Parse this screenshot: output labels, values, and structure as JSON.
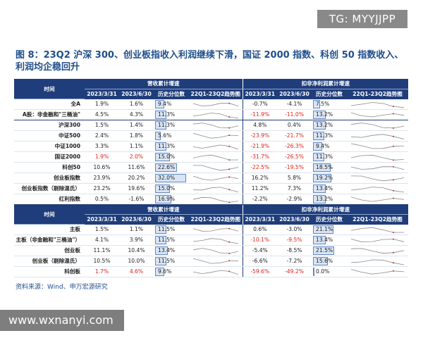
{
  "watermark_top": "TG: MYYJJPP",
  "title": "图 8：23Q2 沪深 300、创业板指收入利润继续下滑，国证 2000 指数、科创 50 指数收入、利润均企稳回升",
  "table1": {
    "group_headers": {
      "revenue": "营收累计增速",
      "profit": "扣非净利润累计增速"
    },
    "col_headers": {
      "name": "时间",
      "d1": "2023/3/31",
      "d2": "2023/6/30",
      "pct": "历史分位数",
      "trend": "22Q1-23Q2趋势图"
    },
    "rows": [
      {
        "name": "全A",
        "r1": "1.9%",
        "r2": "1.6%",
        "rp": "9.4%",
        "rpv": 9.4,
        "p1": "-0.7%",
        "p2": "-4.1%",
        "pp": "7.5%",
        "ppv": 7.5
      },
      {
        "name": "A股：非金融和\"三桶油\"",
        "r1": "4.5%",
        "r2": "4.3%",
        "rp": "11.3%",
        "rpv": 11.3,
        "p1": "-11.9%",
        "p2": "-11.0%",
        "pp": "13.2%",
        "ppv": 13.2
      },
      {
        "name": "沪深300",
        "r1": "1.5%",
        "r2": "1.4%",
        "rp": "11.3%",
        "rpv": 11.3,
        "p1": "4.8%",
        "p2": "0.4%",
        "pp": "13.2%",
        "ppv": 13.2
      },
      {
        "name": "中证500",
        "r1": "2.4%",
        "r2": "1.8%",
        "rp": "5.6%",
        "rpv": 5.6,
        "p1": "-23.9%",
        "p2": "-21.7%",
        "pp": "11.3%",
        "ppv": 11.3
      },
      {
        "name": "中证1000",
        "r1": "3.3%",
        "r2": "1.1%",
        "rp": "11.3%",
        "rpv": 11.3,
        "p1": "-21.9%",
        "p2": "-26.3%",
        "pp": "9.4%",
        "ppv": 9.4
      },
      {
        "name": "国证2000",
        "r1": "1.9%",
        "r2": "2.0%",
        "rp": "15.0%",
        "rpv": 15.0,
        "p1": "-31.7%",
        "p2": "-26.5%",
        "pp": "11.3%",
        "ppv": 11.3
      },
      {
        "name": "科创50",
        "r1": "10.6%",
        "r2": "11.6%",
        "rp": "22.6%",
        "rpv": 22.6,
        "p1": "-22.5%",
        "p2": "-19.5%",
        "pp": "18.5%",
        "ppv": 18.5
      },
      {
        "name": "创业板指数",
        "r1": "23.9%",
        "r2": "20.2%",
        "rp": "32.0%",
        "rpv": 32.0,
        "p1": "16.2%",
        "p2": "5.8%",
        "pp": "19.2%",
        "ppv": 19.2
      },
      {
        "name": "创业板指数（剔除温氏）",
        "r1": "23.2%",
        "r2": "19.6%",
        "rp": "15.0%",
        "rpv": 15.0,
        "p1": "11.2%",
        "p2": "7.3%",
        "pp": "13.4%",
        "ppv": 13.4
      },
      {
        "name": "红利指数",
        "r1": "0.5%",
        "r2": "-1.6%",
        "rp": "16.9%",
        "rpv": 16.9,
        "p1": "-2.2%",
        "p2": "-2.9%",
        "pp": "13.2%",
        "ppv": 13.2
      }
    ]
  },
  "table2": {
    "group_headers": {
      "revenue": "营收累计增速",
      "profit": "扣非净利润累计增速"
    },
    "col_headers": {
      "name": "时间",
      "d1": "2023/3/31",
      "d2": "2023/6/30",
      "pct": "历史分位数",
      "trend": "22Q1-23Q2趋势图"
    },
    "rows": [
      {
        "name": "主板",
        "r1": "1.5%",
        "r2": "1.1%",
        "rp": "11.5%",
        "rpv": 11.5,
        "p1": "0.6%",
        "p2": "-3.0%",
        "pp": "21.1%",
        "ppv": 21.1
      },
      {
        "name": "主板（非金融和\"三桶油\"）",
        "r1": "4.1%",
        "r2": "3.9%",
        "rp": "11.5%",
        "rpv": 11.5,
        "p1": "-10.1%",
        "p2": "-9.5%",
        "pp": "13.4%",
        "ppv": 13.4
      },
      {
        "name": "创业板",
        "r1": "11.1%",
        "r2": "10.4%",
        "rp": "13.4%",
        "rpv": 13.4,
        "p1": "-5.4%",
        "p2": "-8.5%",
        "pp": "21.5%",
        "ppv": 21.5
      },
      {
        "name": "创业板（剔除温氏）",
        "r1": "10.5%",
        "r2": "10.0%",
        "rp": "11.5%",
        "rpv": 11.5,
        "p1": "-6.6%",
        "p2": "-7.2%",
        "pp": "15.6%",
        "ppv": 15.6
      },
      {
        "name": "科创板",
        "r1": "1.7%",
        "r2": "4.6%",
        "rp": "9.6%",
        "rpv": 9.6,
        "p1": "-59.6%",
        "p2": "-49.2%",
        "pp": "0.0%",
        "ppv": 0.0
      }
    ]
  },
  "red_cells": [
    "t1-5-r1",
    "t1-5-r2",
    "t1-1-p1",
    "t1-1-p2",
    "t1-3-p1",
    "t1-3-p2",
    "t1-4-p1",
    "t1-4-p2",
    "t1-5-p1",
    "t1-5-p2",
    "t1-6-p1",
    "t1-6-p2",
    "t2-1-p1",
    "t2-1-p2",
    "t2-4-r1",
    "t2-4-r2",
    "t2-4-p1",
    "t2-4-p2"
  ],
  "source": "资料来源：Wind、申万宏源研究",
  "watermark_bottom": "www.wxnanyi.com",
  "colors": {
    "header": "#1f3d7a",
    "title": "#1f4e8c",
    "red": "#e0221b",
    "bar_fill": "#d9e5f5",
    "bar_border": "#5f87c5"
  }
}
